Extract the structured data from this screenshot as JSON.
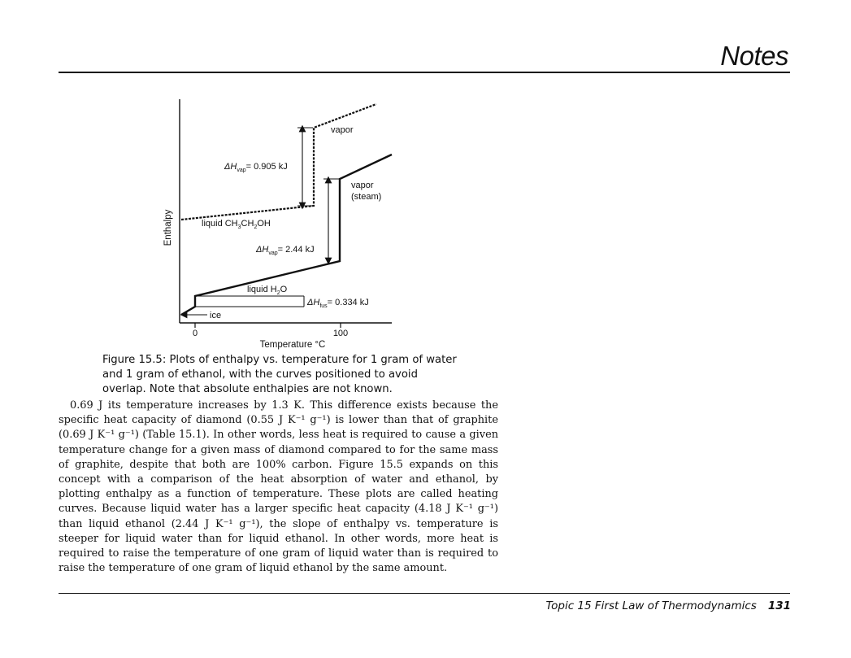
{
  "header": {
    "title": "Notes"
  },
  "figure": {
    "y_axis_label": "Enthalpy",
    "x_axis_label": "Temperature °C",
    "ticks": [
      "0",
      "100"
    ],
    "labels": {
      "vapor": "vapor",
      "vapor_steam_1": "vapor",
      "vapor_steam_2": "(steam)",
      "dh_vap_ethanol": "= 0.905 kJ",
      "liquid_ethanol": "liquid CH",
      "dh_vap_water": "= 2.44 kJ",
      "liquid_water": "liquid H",
      "dh_fus": "= 0.334 kJ",
      "ice": "ice",
      "delta_h": "ΔH",
      "sub_vap": "vap",
      "sub_fus": "fus"
    }
  },
  "caption": {
    "text": "Figure 15.5: Plots of enthalpy vs. temperature for 1 gram of water and 1 gram of ethanol, with the curves positioned to avoid overlap. Note that absolute enthalpies are not known."
  },
  "body": {
    "paragraph": "0.69 J its temperature increases by 1.3 K. This difference exists because the specific heat capacity of diamond (0.55 J K⁻¹ g⁻¹) is lower than that of graphite (0.69 J K⁻¹ g⁻¹) (Table 15.1). In other words, less heat is required to cause a given temperature change for a given mass of diamond compared to for the same mass of graphite, despite that both are 100% carbon. Figure 15.5 expands on this concept with a comparison of the heat absorption of water and ethanol, by plotting enthalpy as a function of temperature. These plots are called heating curves. Because liquid water has a larger specific heat capacity (4.18 J K⁻¹ g⁻¹) than liquid ethanol (2.44 J K⁻¹ g⁻¹), the slope of enthalpy vs. temperature is steeper for liquid water than for liquid ethanol. In other words, more heat is required to raise the temperature of one gram of liquid water than is required to raise the temperature of one gram of liquid ethanol by the same amount."
  },
  "footer": {
    "topic": "Topic 15   First Law of Thermodynamics",
    "page": "131"
  }
}
